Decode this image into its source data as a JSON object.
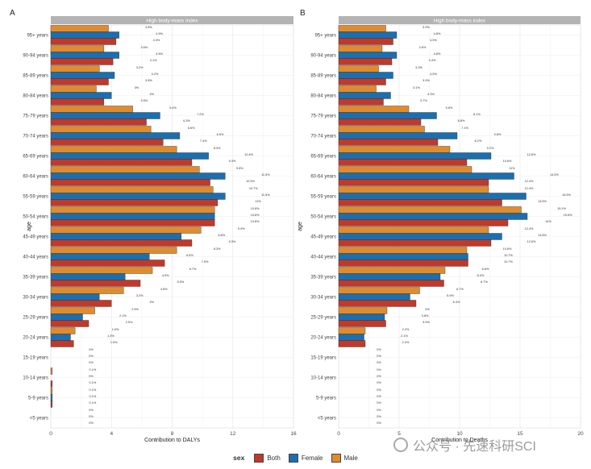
{
  "colors": {
    "both": "#c0392b",
    "female": "#1b6fae",
    "male": "#e08c2e"
  },
  "legend": {
    "title": "sex",
    "items": [
      {
        "key": "both",
        "label": "Both"
      },
      {
        "key": "female",
        "label": "Female"
      },
      {
        "key": "male",
        "label": "Male"
      }
    ]
  },
  "watermark": {
    "text": "公众号 · 先速科研SCI"
  },
  "chart_data": [
    {
      "type": "bar",
      "orientation": "horizontal",
      "panel_label": "A",
      "title": "High body-mass index",
      "xlabel": "Contribution to DALYs",
      "ylabel": "age",
      "xlim": [
        0,
        16
      ],
      "xticks": [
        "0",
        "4",
        "8",
        "12",
        "16"
      ],
      "xtick_values": [
        0,
        4,
        8,
        12,
        16
      ],
      "categories": [
        "95+ years",
        "90-94 years",
        "85-89 years",
        "80-84 years",
        "75-79 years",
        "70-74 years",
        "65-69 years",
        "60-64 years",
        "55-59 years",
        "50-54 years",
        "45-49 years",
        "40-44 years",
        "35-39 years",
        "30-34 years",
        "25-29 years",
        "20-24 years",
        "15-19 years",
        "10-14 years",
        "5-9 years",
        "<5 years"
      ],
      "series": [
        {
          "name": "Male",
          "key": "male",
          "values": [
            3.8,
            3.5,
            3.2,
            3.0,
            5.4,
            6.6,
            8.3,
            9.8,
            10.7,
            10.8,
            9.9,
            8.3,
            6.7,
            4.8,
            2.9,
            1.6,
            0,
            0.1,
            0.1,
            0
          ],
          "labels": [
            "3.8%",
            "3.5%",
            "3.2%",
            "3%",
            "5.4%",
            "6.6%",
            "8.3%",
            "9.8%",
            "10.7%",
            "10.8%",
            "9.9%",
            "8.3%",
            "6.7%",
            "4.8%",
            "2.9%",
            "1.6%",
            "0%",
            "0.1%",
            "0.1%",
            "0%"
          ]
        },
        {
          "name": "Female",
          "key": "female",
          "values": [
            4.5,
            4.5,
            4.2,
            4.0,
            7.2,
            8.5,
            10.4,
            11.5,
            11.5,
            10.8,
            8.6,
            6.5,
            4.9,
            3.2,
            2.1,
            1.3,
            0,
            0,
            0.1,
            0
          ],
          "labels": [
            "4.5%",
            "4.5%",
            "4.2%",
            "4%",
            "7.2%",
            "8.5%",
            "10.4%",
            "11.5%",
            "11.5%",
            "10.8%",
            "8.6%",
            "6.5%",
            "4.9%",
            "3.2%",
            "2.1%",
            "1.3%",
            "0%",
            "0%",
            "0.1%",
            "0%"
          ]
        },
        {
          "name": "Both",
          "key": "both",
          "values": [
            4.3,
            4.1,
            3.8,
            3.5,
            6.3,
            7.4,
            9.3,
            10.5,
            11.0,
            10.8,
            9.3,
            7.5,
            5.9,
            4.0,
            2.5,
            1.5,
            0,
            0.1,
            0.1,
            0
          ],
          "labels": [
            "4.3%",
            "4.1%",
            "3.8%",
            "3.5%",
            "6.3%",
            "7.4%",
            "9.3%",
            "10.5%",
            "11%",
            "10.8%",
            "9.3%",
            "7.5%",
            "5.9%",
            "4%",
            "2.5%",
            "1.5%",
            "0%",
            "0.1%",
            "0.1%",
            "0%"
          ]
        }
      ]
    },
    {
      "type": "bar",
      "orientation": "horizontal",
      "panel_label": "B",
      "title": "High body-mass index",
      "xlabel": "Contribution to Deaths",
      "ylabel": "age",
      "xlim": [
        0,
        20
      ],
      "xticks": [
        "0",
        "5",
        "10",
        "15",
        "20"
      ],
      "xtick_values": [
        0,
        5,
        10,
        15,
        20
      ],
      "categories": [
        "95+ years",
        "90-94 years",
        "85-89 years",
        "80-84 years",
        "75-79 years",
        "70-74 years",
        "65-69 years",
        "60-64 years",
        "55-59 years",
        "50-54 years",
        "45-49 years",
        "40-44 years",
        "35-39 years",
        "30-34 years",
        "25-29 years",
        "20-24 years",
        "15-19 years",
        "10-14 years",
        "5-9 years",
        "<5 years"
      ],
      "series": [
        {
          "name": "Male",
          "key": "male",
          "values": [
            3.9,
            3.6,
            3.3,
            3.1,
            5.8,
            7.1,
            9.2,
            11.0,
            12.4,
            15.1,
            12.4,
            10.6,
            8.8,
            6.7,
            4.0,
            2.2,
            0,
            0,
            0,
            0
          ],
          "labels": [
            "3.9%",
            "3.6%",
            "3.3%",
            "3.1%",
            "5.8%",
            "7.1%",
            "9.2%",
            "11%",
            "12.4%",
            "15.1%",
            "12.4%",
            "10.6%",
            "8.8%",
            "6.7%",
            "4%",
            "2.2%",
            "0%",
            "0%",
            "0%",
            "0%"
          ]
        },
        {
          "name": "Female",
          "key": "female",
          "values": [
            4.8,
            4.8,
            4.5,
            4.3,
            8.1,
            9.8,
            12.6,
            14.5,
            15.5,
            15.6,
            13.5,
            10.7,
            8.4,
            5.9,
            3.8,
            2.1,
            0,
            0,
            0,
            0
          ],
          "labels": [
            "4.8%",
            "4.8%",
            "4.5%",
            "4.3%",
            "8.1%",
            "9.8%",
            "12.6%",
            "14.5%",
            "15.5%",
            "15.6%",
            "13.5%",
            "10.7%",
            "8.4%",
            "5.9%",
            "3.8%",
            "2.1%",
            "0%",
            "0%",
            "0%",
            "0%"
          ]
        },
        {
          "name": "Both",
          "key": "both",
          "values": [
            4.5,
            4.4,
            3.9,
            3.7,
            6.8,
            8.2,
            10.6,
            12.4,
            13.5,
            14.0,
            12.6,
            10.7,
            8.7,
            6.4,
            3.9,
            2.2,
            0,
            0,
            0,
            0
          ],
          "labels": [
            "4.5%",
            "4.4%",
            "3.9%",
            "3.7%",
            "6.8%",
            "8.2%",
            "10.6%",
            "12.4%",
            "13.5%",
            "14%",
            "12.6%",
            "10.7%",
            "8.7%",
            "6.4%",
            "3.9%",
            "2.2%",
            "0%",
            "0%",
            "0%",
            "0%"
          ]
        }
      ]
    }
  ]
}
